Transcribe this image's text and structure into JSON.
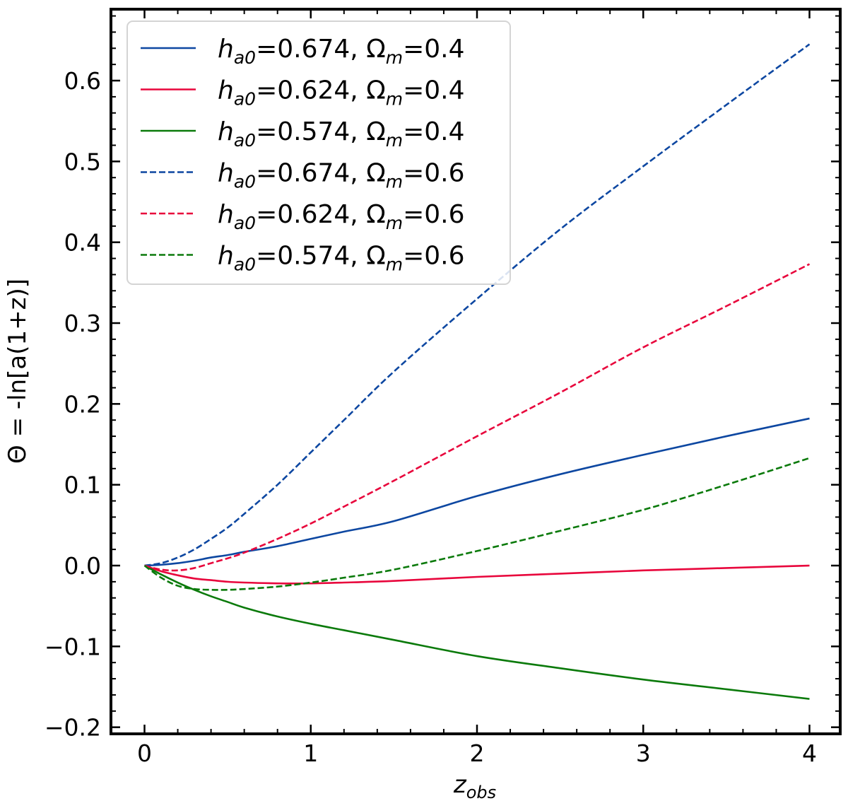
{
  "chart_data": {
    "type": "line",
    "title": "",
    "xlabel": "z",
    "xlabel_sub": "obs",
    "ylabel": "Θ = -ln[a(1+z)]",
    "xlim": [
      -0.2,
      4.2
    ],
    "ylim": [
      -0.205,
      0.685
    ],
    "xticks": [
      0,
      1,
      2,
      3,
      4
    ],
    "xtick_labels": [
      "0",
      "1",
      "2",
      "3",
      "4"
    ],
    "yticks": [
      -0.2,
      -0.1,
      0.0,
      0.1,
      0.2,
      0.3,
      0.4,
      0.5,
      0.6
    ],
    "ytick_labels": [
      "−0.2",
      "−0.1",
      "0.0",
      "0.1",
      "0.2",
      "0.3",
      "0.4",
      "0.5",
      "0.6"
    ],
    "grid": false,
    "legend_position": "top-left",
    "x": [
      0,
      0.1,
      0.2,
      0.3,
      0.4,
      0.5,
      0.6,
      0.8,
      1.0,
      1.2,
      1.5,
      2.0,
      2.5,
      3.0,
      3.5,
      4.0
    ],
    "series": [
      {
        "name": "h_a0=0.674, Ω_m=0.4",
        "label": {
          "h": "h",
          "hsub": "a0",
          "hval": "=0.674, ",
          "om": "Ω",
          "omsub": "m",
          "omval": "=0.4"
        },
        "color": "#0d47a1",
        "style": "solid",
        "values": [
          0,
          0.001,
          0.003,
          0.006,
          0.01,
          0.013,
          0.017,
          0.024,
          0.033,
          0.042,
          0.055,
          0.086,
          0.113,
          0.137,
          0.16,
          0.182
        ]
      },
      {
        "name": "h_a0=0.624, Ω_m=0.4",
        "label": {
          "h": "h",
          "hsub": "a0",
          "hval": "=0.624, ",
          "om": "Ω",
          "omsub": "m",
          "omval": "=0.4"
        },
        "color": "#e8063c",
        "style": "solid",
        "values": [
          0,
          -0.007,
          -0.012,
          -0.016,
          -0.018,
          -0.02,
          -0.021,
          -0.022,
          -0.022,
          -0.021,
          -0.019,
          -0.014,
          -0.01,
          -0.006,
          -0.003,
          0.0
        ]
      },
      {
        "name": "h_a0=0.574, Ω_m=0.4",
        "label": {
          "h": "h",
          "hsub": "a0",
          "hval": "=0.574, ",
          "om": "Ω",
          "omsub": "m",
          "omval": "=0.4"
        },
        "color": "#0b7a0b",
        "style": "solid",
        "values": [
          0,
          -0.011,
          -0.021,
          -0.03,
          -0.038,
          -0.045,
          -0.052,
          -0.063,
          -0.072,
          -0.08,
          -0.092,
          -0.112,
          -0.127,
          -0.141,
          -0.153,
          -0.165
        ]
      },
      {
        "name": "h_a0=0.674, Ω_m=0.6",
        "label": {
          "h": "h",
          "hsub": "a0",
          "hval": "=0.674, ",
          "om": "Ω",
          "omsub": "m",
          "omval": "=0.6"
        },
        "color": "#0d47a1",
        "style": "dashed",
        "values": [
          0,
          0.003,
          0.01,
          0.02,
          0.033,
          0.047,
          0.064,
          0.1,
          0.14,
          0.18,
          0.24,
          0.33,
          0.416,
          0.494,
          0.57,
          0.645
        ]
      },
      {
        "name": "h_a0=0.624, Ω_m=0.6",
        "label": {
          "h": "h",
          "hsub": "a0",
          "hval": "=0.624, ",
          "om": "Ω",
          "omsub": "m",
          "omval": "=0.6"
        },
        "color": "#e8063c",
        "style": "dashed",
        "values": [
          0,
          -0.005,
          -0.006,
          -0.003,
          0.003,
          0.009,
          0.016,
          0.033,
          0.052,
          0.073,
          0.105,
          0.16,
          0.214,
          0.27,
          0.321,
          0.373
        ]
      },
      {
        "name": "h_a0=0.574, Ω_m=0.6",
        "label": {
          "h": "h",
          "hsub": "a0",
          "hval": "=0.574, ",
          "om": "Ω",
          "omsub": "m",
          "omval": "=0.6"
        },
        "color": "#0b7a0b",
        "style": "dashed",
        "values": [
          0,
          -0.015,
          -0.025,
          -0.029,
          -0.03,
          -0.03,
          -0.029,
          -0.026,
          -0.021,
          -0.015,
          -0.005,
          0.018,
          0.043,
          0.069,
          0.1,
          0.133
        ]
      }
    ]
  }
}
